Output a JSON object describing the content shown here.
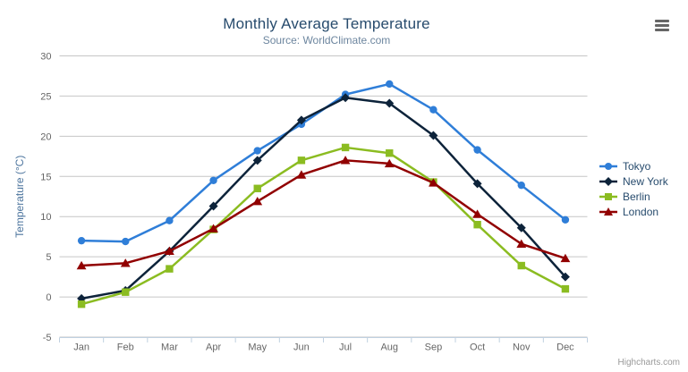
{
  "chart_data": {
    "type": "line",
    "title": "Monthly Average Temperature",
    "subtitle": "Source: WorldClimate.com",
    "xlabel": "",
    "ylabel": "Temperature (°C)",
    "categories": [
      "Jan",
      "Feb",
      "Mar",
      "Apr",
      "May",
      "Jun",
      "Jul",
      "Aug",
      "Sep",
      "Oct",
      "Nov",
      "Dec"
    ],
    "series": [
      {
        "name": "Tokyo",
        "color": "#2f7ed8",
        "marker": "circle",
        "values": [
          7.0,
          6.9,
          9.5,
          14.5,
          18.2,
          21.5,
          25.2,
          26.5,
          23.3,
          18.3,
          13.9,
          9.6
        ]
      },
      {
        "name": "New York",
        "color": "#0d233a",
        "marker": "diamond",
        "values": [
          -0.2,
          0.8,
          5.7,
          11.3,
          17.0,
          22.0,
          24.8,
          24.1,
          20.1,
          14.1,
          8.6,
          2.5
        ]
      },
      {
        "name": "Berlin",
        "color": "#8bbc21",
        "marker": "square",
        "values": [
          -0.9,
          0.6,
          3.5,
          8.4,
          13.5,
          17.0,
          18.6,
          17.9,
          14.3,
          9.0,
          3.9,
          1.0
        ]
      },
      {
        "name": "London",
        "color": "#910000",
        "marker": "triangle",
        "values": [
          3.9,
          4.2,
          5.7,
          8.5,
          11.9,
          15.2,
          17.0,
          16.6,
          14.2,
          10.3,
          6.6,
          4.8
        ]
      }
    ],
    "ylim": [
      -5,
      30
    ],
    "ytick_interval": 5,
    "yticks": [
      -5,
      0,
      5,
      10,
      15,
      20,
      25,
      30
    ],
    "grid": true,
    "legend_position": "right"
  },
  "credits": "Highcharts.com",
  "export_menu_icon": "hamburger-icon",
  "colors": {
    "title": "#274b6d",
    "subtitle": "#6d869f",
    "axis_label": "#666666",
    "axis_title": "#4d759e",
    "grid_line": "#c6c6c6",
    "axis_line": "#c0d0e0",
    "legend_text": "#274b6d",
    "credits": "#999999",
    "menu_icon": "#666666",
    "background": "#ffffff"
  }
}
